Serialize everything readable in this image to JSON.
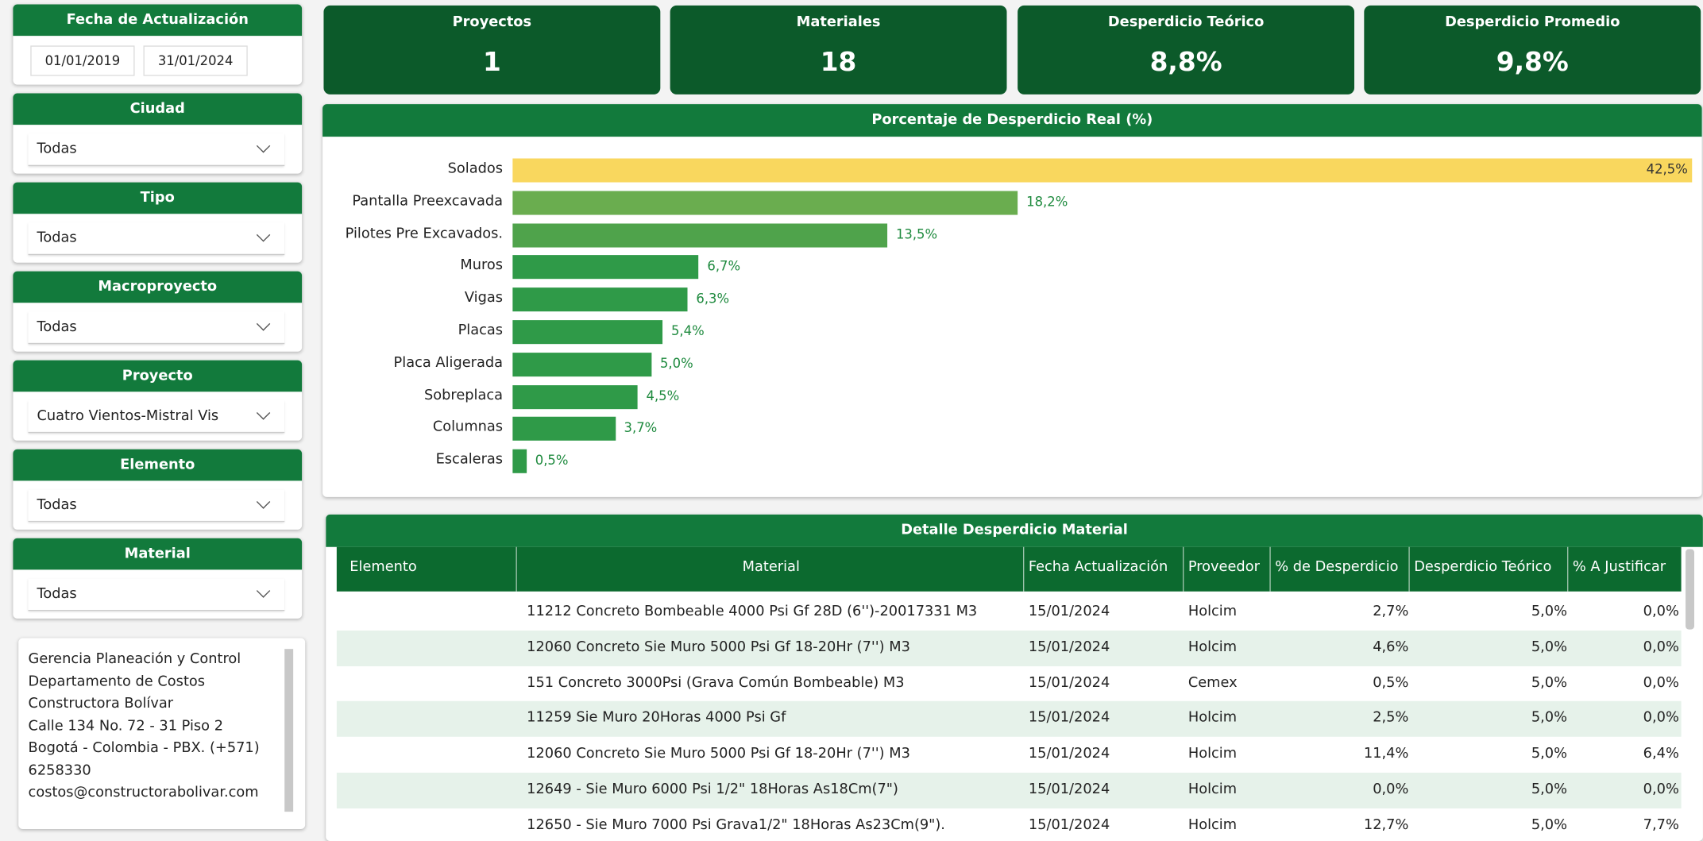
{
  "filters": [
    {
      "title": "Fecha de Actualización",
      "values": [
        "01/01/2019",
        "31/01/2024"
      ]
    },
    {
      "title": "Ciudad",
      "value": "Todas"
    },
    {
      "title": "Tipo",
      "value": "Todas"
    },
    {
      "title": "Macroproyecto",
      "value": "Todas"
    },
    {
      "title": "Proyecto",
      "value": "Cuatro Vientos-Mistral Vis"
    },
    {
      "title": "Elemento",
      "value": "Todas"
    },
    {
      "title": "Material",
      "value": "Todas"
    }
  ],
  "footer": {
    "lines": [
      "Gerencia Planeación y Control",
      "Departamento de Costos",
      "Constructora Bolívar",
      "Calle 134 No. 72 - 31 Piso 2",
      "Bogotá - Colombia - PBX. (+571)",
      "6258330",
      "costos@constructorabolivar.com"
    ]
  },
  "kpis": [
    {
      "label": "Proyectos",
      "value": "1"
    },
    {
      "label": "Materiales",
      "value": "18"
    },
    {
      "label": "Desperdicio Teórico",
      "value": "8,8%"
    },
    {
      "label": "Desperdicio Promedio",
      "value": "9,8%"
    }
  ],
  "chart_data": {
    "type": "bar",
    "orientation": "horizontal",
    "title": "Porcentaje de Desperdicio Real (%)",
    "categories": [
      "Solados",
      "Pantalla Preexcavada",
      "Pilotes Pre Excavados.",
      "Muros",
      "Vigas",
      "Placas",
      "Placa Aligerada",
      "Sobreplaca",
      "Columnas",
      "Escaleras"
    ],
    "values": [
      42.5,
      18.2,
      13.5,
      6.7,
      6.3,
      5.4,
      5.0,
      4.5,
      3.7,
      0.5
    ],
    "value_labels": [
      "42,5%",
      "18,2%",
      "13,5%",
      "6,7%",
      "6,3%",
      "5,4%",
      "5,0%",
      "4,5%",
      "3,7%",
      "0,5%"
    ],
    "colors": [
      "#f9d75e",
      "#6aad4f",
      "#4fa34b",
      "#2f9a48",
      "#2f9a48",
      "#2f9a48",
      "#2f9a48",
      "#2f9a48",
      "#2f9a48",
      "#2f9a48"
    ]
  },
  "table": {
    "title": "Detalle Desperdicio Material",
    "columns": [
      "Elemento",
      "Material",
      "Fecha Actualización",
      "Proveedor",
      "% de Desperdicio",
      "Desperdicio Teórico",
      "% A Justificar"
    ],
    "rows": [
      [
        "11212 Concreto Bombeable 4000 Psi Gf 28D (6'')-20017331 M3",
        "15/01/2024",
        "Holcim",
        "2,7%",
        "5,0%",
        "0,0%"
      ],
      [
        "12060 Concreto Sie Muro 5000 Psi Gf 18-20Hr (7'') M3",
        "15/01/2024",
        "Holcim",
        "4,6%",
        "5,0%",
        "0,0%"
      ],
      [
        "151 Concreto 3000Psi (Grava Común Bombeable) M3",
        "15/01/2024",
        "Cemex",
        "0,5%",
        "5,0%",
        "0,0%"
      ],
      [
        "11259 Sie Muro 20Horas 4000 Psi Gf",
        "15/01/2024",
        "Holcim",
        "2,5%",
        "5,0%",
        "0,0%"
      ],
      [
        "12060 Concreto Sie Muro 5000 Psi Gf 18-20Hr (7'') M3",
        "15/01/2024",
        "Holcim",
        "11,4%",
        "5,0%",
        "6,4%"
      ],
      [
        "12649 - Sie Muro 6000 Psi 1/2\" 18Horas As18Cm(7\")",
        "15/01/2024",
        "Holcim",
        "0,0%",
        "5,0%",
        "0,0%"
      ],
      [
        "12650 - Sie Muro 7000 Psi Grava1/2\" 18Horas As23Cm(9\").",
        "15/01/2024",
        "Holcim",
        "12,7%",
        "5,0%",
        "7,7%"
      ]
    ]
  }
}
